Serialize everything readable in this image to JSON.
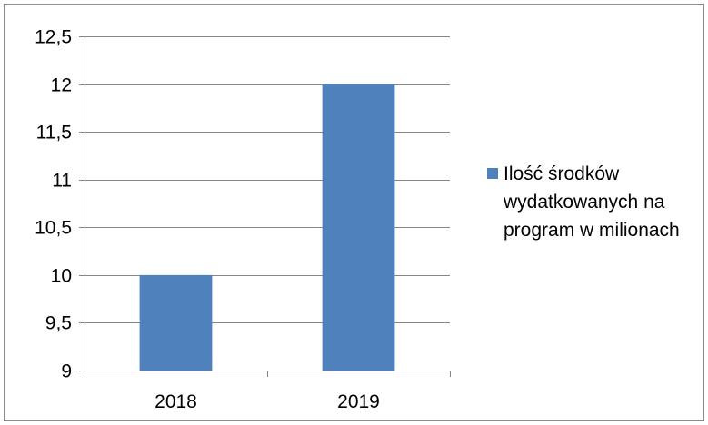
{
  "chart_data": {
    "type": "bar",
    "categories": [
      "2018",
      "2019"
    ],
    "series": [
      {
        "name": "Ilość środków wydatkowanych na program w milionach",
        "values": [
          10,
          12
        ],
        "color": "#4f81bd"
      }
    ],
    "title": "",
    "xlabel": "",
    "ylabel": "",
    "ylim": [
      9,
      12.5
    ],
    "yticks": [
      "9",
      "9,5",
      "10",
      "10,5",
      "11",
      "11,5",
      "12",
      "12,5"
    ],
    "grid": true,
    "legend_position": "right",
    "colors": {
      "gridline": "#868686",
      "axis": "#868686",
      "frame": "#8c8c8c"
    }
  }
}
